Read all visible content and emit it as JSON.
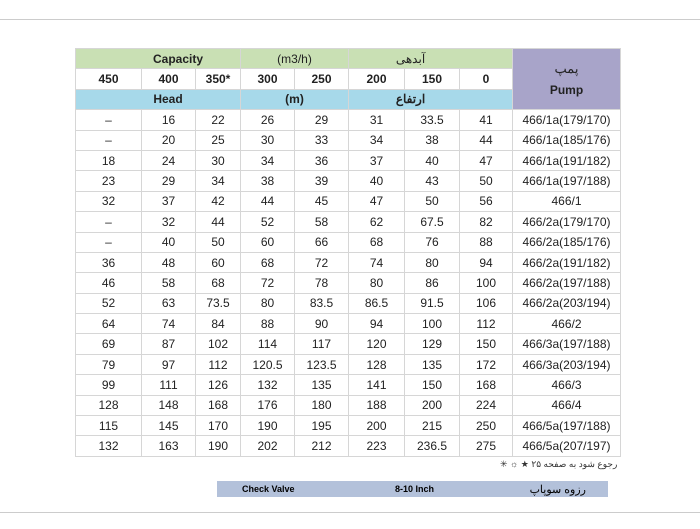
{
  "header": {
    "capacity_label": "Capacity",
    "capacity_unit": "(m3/h)",
    "capacity_fa": "آبدهی",
    "pump_fa": "پمپ",
    "pump_en": "Pump",
    "head_label": "Head",
    "head_unit": "(m)",
    "head_fa": "ارتفاع",
    "capacities": [
      "450",
      "400",
      "350*",
      "300",
      "250",
      "200",
      "150",
      "0"
    ]
  },
  "rows": [
    [
      "–",
      "16",
      "22",
      "26",
      "29",
      "31",
      "33.5",
      "41",
      "466/1a(179/170)"
    ],
    [
      "–",
      "20",
      "25",
      "30",
      "33",
      "34",
      "38",
      "44",
      "466/1a(185/176)"
    ],
    [
      "18",
      "24",
      "30",
      "34",
      "36",
      "37",
      "40",
      "47",
      "466/1a(191/182)"
    ],
    [
      "23",
      "29",
      "34",
      "38",
      "39",
      "40",
      "43",
      "50",
      "466/1a(197/188)"
    ],
    [
      "32",
      "37",
      "42",
      "44",
      "45",
      "47",
      "50",
      "56",
      "466/1"
    ],
    [
      "–",
      "32",
      "44",
      "52",
      "58",
      "62",
      "67.5",
      "82",
      "466/2a(179/170)"
    ],
    [
      "–",
      "40",
      "50",
      "60",
      "66",
      "68",
      "76",
      "88",
      "466/2a(185/176)"
    ],
    [
      "36",
      "48",
      "60",
      "68",
      "72",
      "74",
      "80",
      "94",
      "466/2a(191/182)"
    ],
    [
      "46",
      "58",
      "68",
      "72",
      "78",
      "80",
      "86",
      "100",
      "466/2a(197/188)"
    ],
    [
      "52",
      "63",
      "73.5",
      "80",
      "83.5",
      "86.5",
      "91.5",
      "106",
      "466/2a(203/194)"
    ],
    [
      "64",
      "74",
      "84",
      "88",
      "90",
      "94",
      "100",
      "112",
      "466/2"
    ],
    [
      "69",
      "87",
      "102",
      "114",
      "117",
      "120",
      "129",
      "150",
      "466/3a(197/188)"
    ],
    [
      "79",
      "97",
      "112",
      "120.5",
      "123.5",
      "128",
      "135",
      "172",
      "466/3a(203/194)"
    ],
    [
      "99",
      "111",
      "126",
      "132",
      "135",
      "141",
      "150",
      "168",
      "466/3"
    ],
    [
      "128",
      "148",
      "168",
      "176",
      "180",
      "188",
      "200",
      "224",
      "466/4"
    ],
    [
      "115",
      "145",
      "170",
      "190",
      "195",
      "200",
      "215",
      "250",
      "466/5a(197/188)"
    ],
    [
      "132",
      "163",
      "190",
      "202",
      "212",
      "223",
      "236.5",
      "275",
      "466/5a(207/197)"
    ]
  ],
  "note": {
    "symbols": "★ ☼ ✳",
    "text": "رجوع شود به صفحه ۲۵"
  },
  "footer": {
    "label_en": "Check Valve",
    "size": "8-10 Inch",
    "label_fa": "رزوه سوپاپ"
  }
}
